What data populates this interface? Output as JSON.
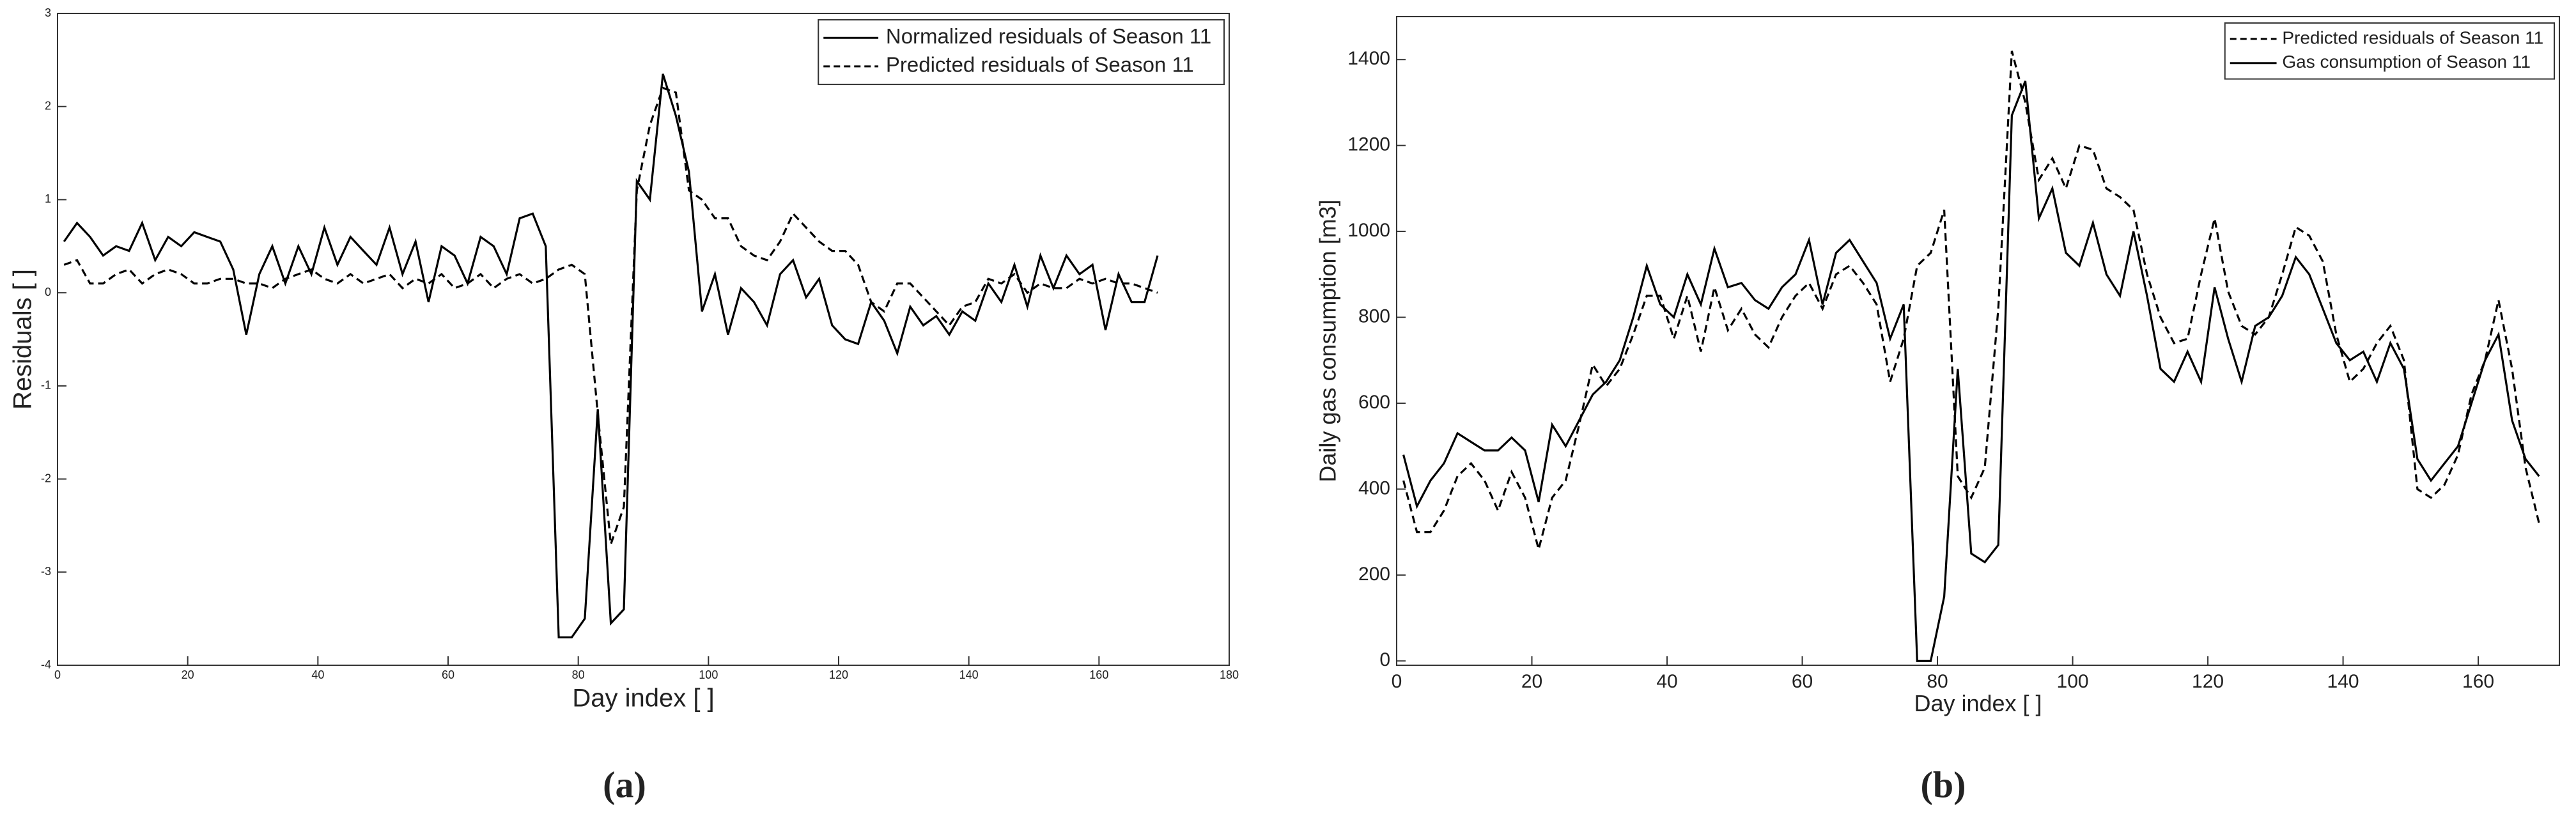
{
  "chart_data": [
    {
      "type": "line",
      "xlabel": "Day index [ ]",
      "ylabel": "Residuals [ ]",
      "panel_label": "(a)",
      "xlim": [
        0,
        180
      ],
      "xticks": [
        0,
        20,
        40,
        60,
        80,
        100,
        120,
        140,
        160,
        180
      ],
      "ylim": [
        -4,
        3
      ],
      "yticks": [
        -4,
        -3,
        -2,
        -1,
        0,
        1,
        2,
        3
      ],
      "grid": false,
      "legend": "upper right",
      "x": [
        1,
        3,
        5,
        7,
        9,
        11,
        13,
        15,
        17,
        19,
        21,
        23,
        25,
        27,
        29,
        31,
        33,
        35,
        37,
        39,
        41,
        43,
        45,
        47,
        49,
        51,
        53,
        55,
        57,
        59,
        61,
        63,
        65,
        67,
        69,
        71,
        73,
        75,
        77,
        79,
        81,
        83,
        85,
        87,
        89,
        91,
        93,
        95,
        97,
        99,
        101,
        103,
        105,
        107,
        109,
        111,
        113,
        115,
        117,
        119,
        121,
        123,
        125,
        127,
        129,
        131,
        133,
        135,
        137,
        139,
        141,
        143,
        145,
        147,
        149,
        151,
        153,
        155,
        157,
        159,
        161,
        163,
        165,
        167,
        169
      ],
      "series": [
        {
          "name": "Normalized residuals of Season 11",
          "color": "#000000",
          "linestyle": "solid",
          "values": [
            0.55,
            0.75,
            0.6,
            0.4,
            0.5,
            0.45,
            0.75,
            0.35,
            0.6,
            0.5,
            0.65,
            0.6,
            0.55,
            0.25,
            -0.45,
            0.2,
            0.5,
            0.1,
            0.5,
            0.2,
            0.7,
            0.3,
            0.6,
            0.45,
            0.3,
            0.7,
            0.2,
            0.55,
            -0.1,
            0.5,
            0.4,
            0.1,
            0.6,
            0.5,
            0.2,
            0.8,
            0.85,
            0.5,
            -3.7,
            -3.7,
            -3.5,
            -1.25,
            -3.55,
            -3.4,
            1.2,
            1.0,
            2.35,
            1.9,
            1.3,
            -0.2,
            0.2,
            -0.45,
            0.05,
            -0.1,
            -0.35,
            0.2,
            0.35,
            -0.05,
            0.15,
            -0.35,
            -0.5,
            -0.55,
            -0.1,
            -0.3,
            -0.65,
            -0.15,
            -0.35,
            -0.25,
            -0.45,
            -0.2,
            -0.3,
            0.1,
            -0.1,
            0.3,
            -0.15,
            0.4,
            0.05,
            0.4,
            0.2,
            0.3,
            -0.4,
            0.2,
            -0.1,
            -0.1,
            0.4
          ]
        },
        {
          "name": "Predicted residuals of Season 11",
          "color": "#000000",
          "linestyle": "dashed",
          "values": [
            0.3,
            0.35,
            0.1,
            0.1,
            0.2,
            0.25,
            0.1,
            0.2,
            0.25,
            0.2,
            0.1,
            0.1,
            0.15,
            0.15,
            0.1,
            0.1,
            0.05,
            0.15,
            0.2,
            0.25,
            0.15,
            0.1,
            0.2,
            0.1,
            0.15,
            0.2,
            0.05,
            0.15,
            0.1,
            0.2,
            0.05,
            0.1,
            0.2,
            0.05,
            0.15,
            0.2,
            0.1,
            0.15,
            0.25,
            0.3,
            0.2,
            -1.3,
            -2.7,
            -2.3,
            1.1,
            1.8,
            2.2,
            2.15,
            1.1,
            1.0,
            0.8,
            0.8,
            0.5,
            0.4,
            0.35,
            0.55,
            0.85,
            0.7,
            0.55,
            0.45,
            0.45,
            0.3,
            -0.1,
            -0.2,
            0.1,
            0.1,
            -0.05,
            -0.2,
            -0.35,
            -0.15,
            -0.1,
            0.15,
            0.1,
            0.2,
            0.0,
            0.1,
            0.05,
            0.05,
            0.15,
            0.1,
            0.15,
            0.1,
            0.1,
            0.05,
            0.0
          ]
        }
      ]
    },
    {
      "type": "line",
      "xlabel": "Day index [ ]",
      "ylabel": "Daily gas consumption [m3]",
      "panel_label": "(b)",
      "xlim": [
        0,
        172
      ],
      "xticks": [
        0,
        20,
        40,
        60,
        80,
        100,
        120,
        140,
        160
      ],
      "ylim": [
        -10,
        1500
      ],
      "yticks": [
        0,
        200,
        400,
        600,
        800,
        1000,
        1200,
        1400
      ],
      "grid": false,
      "legend": "upper right",
      "x": [
        1,
        3,
        5,
        7,
        9,
        11,
        13,
        15,
        17,
        19,
        21,
        23,
        25,
        27,
        29,
        31,
        33,
        35,
        37,
        39,
        41,
        43,
        45,
        47,
        49,
        51,
        53,
        55,
        57,
        59,
        61,
        63,
        65,
        67,
        69,
        71,
        73,
        75,
        77,
        79,
        81,
        83,
        85,
        87,
        89,
        91,
        93,
        95,
        97,
        99,
        101,
        103,
        105,
        107,
        109,
        111,
        113,
        115,
        117,
        119,
        121,
        123,
        125,
        127,
        129,
        131,
        133,
        135,
        137,
        139,
        141,
        143,
        145,
        147,
        149,
        151,
        153,
        155,
        157,
        159,
        161,
        163,
        165,
        167,
        169
      ],
      "series": [
        {
          "name": "Predicted residuals of Season 11",
          "color": "#000000",
          "linestyle": "dashed",
          "values": [
            420,
            300,
            300,
            350,
            430,
            460,
            420,
            350,
            440,
            380,
            260,
            380,
            420,
            550,
            690,
            640,
            680,
            760,
            850,
            850,
            750,
            850,
            720,
            870,
            770,
            820,
            760,
            730,
            800,
            850,
            880,
            820,
            900,
            920,
            880,
            830,
            650,
            750,
            920,
            950,
            1050,
            430,
            380,
            450,
            820,
            1420,
            1300,
            1120,
            1170,
            1100,
            1200,
            1190,
            1100,
            1080,
            1050,
            900,
            800,
            740,
            750,
            900,
            1030,
            860,
            780,
            760,
            800,
            900,
            1010,
            990,
            930,
            760,
            650,
            680,
            740,
            780,
            700,
            400,
            380,
            410,
            480,
            620,
            700,
            840,
            680,
            450,
            320
          ]
        },
        {
          "name": "Gas consumption of Season 11",
          "color": "#000000",
          "linestyle": "solid",
          "values": [
            480,
            360,
            420,
            460,
            530,
            510,
            490,
            490,
            520,
            490,
            370,
            550,
            500,
            560,
            620,
            650,
            700,
            800,
            920,
            830,
            800,
            900,
            830,
            960,
            870,
            880,
            840,
            820,
            870,
            900,
            980,
            830,
            950,
            980,
            930,
            880,
            750,
            830,
            0,
            0,
            150,
            680,
            250,
            230,
            270,
            1270,
            1350,
            1030,
            1100,
            950,
            920,
            1020,
            900,
            850,
            1000,
            850,
            680,
            650,
            720,
            650,
            870,
            750,
            650,
            780,
            800,
            850,
            940,
            900,
            820,
            740,
            700,
            720,
            650,
            740,
            680,
            470,
            420,
            460,
            500,
            600,
            700,
            760,
            560,
            470,
            430
          ]
        }
      ]
    }
  ]
}
